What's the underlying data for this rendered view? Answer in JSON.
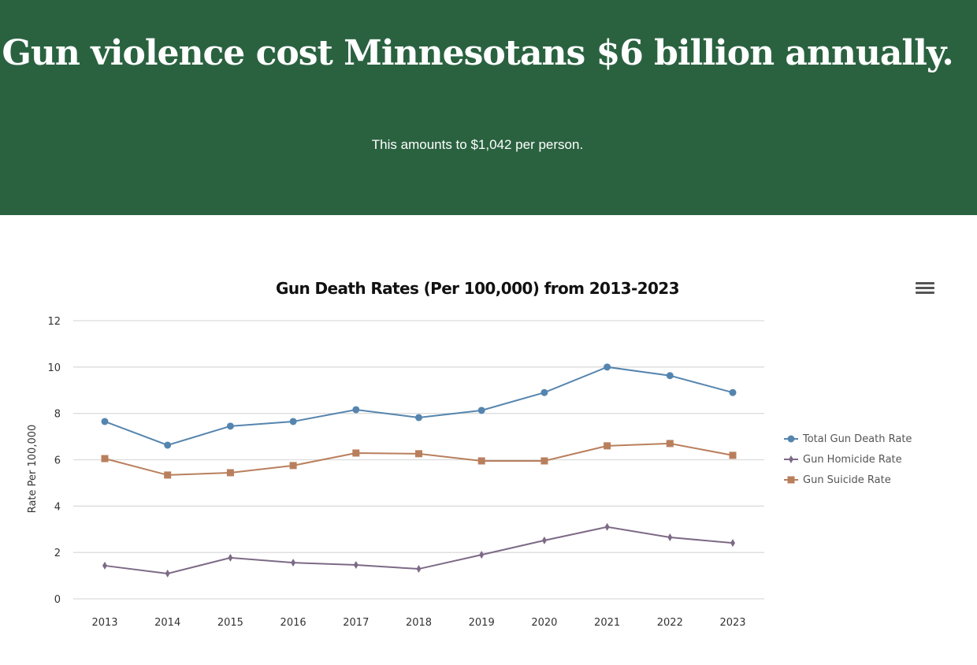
{
  "banner": {
    "headline": "Gun violence cost Minnesotans $6 billion annually.",
    "subheadline": "This amounts to $1,042 per person.",
    "background_color": "#2a6240"
  },
  "menu_icon": "hamburger-menu-icon",
  "chart_data": {
    "type": "line",
    "title": "Gun Death Rates (Per 100,000) from 2013-2023",
    "xlabel": "",
    "ylabel": "Rate Per 100,000",
    "x": [
      "2013",
      "2014",
      "2015",
      "2016",
      "2017",
      "2018",
      "2019",
      "2020",
      "2021",
      "2022",
      "2023"
    ],
    "ylim": [
      0,
      12
    ],
    "yticks": [
      "0",
      "2",
      "4",
      "6",
      "8",
      "10",
      "12"
    ],
    "grid": true,
    "legend_position": "right",
    "series": [
      {
        "name": "Total Gun Death Rate",
        "color": "#5585ae",
        "marker": "circle",
        "values": [
          7.65,
          6.63,
          7.45,
          7.65,
          8.16,
          7.82,
          8.13,
          8.9,
          10.0,
          9.63,
          8.9
        ]
      },
      {
        "name": "Gun Homicide Rate",
        "color": "#7d6a86",
        "marker": "diamond",
        "values": [
          1.43,
          1.09,
          1.77,
          1.56,
          1.46,
          1.29,
          1.9,
          2.52,
          3.1,
          2.65,
          2.41
        ]
      },
      {
        "name": "Gun Suicide Rate",
        "color": "#b97f5d",
        "marker": "square",
        "values": [
          6.05,
          5.34,
          5.44,
          5.75,
          6.29,
          6.26,
          5.95,
          5.95,
          6.6,
          6.7,
          6.19
        ]
      }
    ]
  }
}
